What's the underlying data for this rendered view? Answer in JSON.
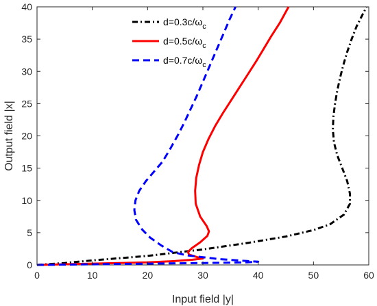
{
  "chart_data": {
    "type": "line",
    "xlabel": "Input field |y|",
    "ylabel": "Output field |x|",
    "xlim": [
      0,
      60
    ],
    "ylim": [
      0,
      40
    ],
    "xticks": [
      0,
      10,
      20,
      30,
      40,
      50,
      60
    ],
    "yticks": [
      0,
      5,
      10,
      15,
      20,
      25,
      30,
      35,
      40
    ],
    "grid": false,
    "legend_position": "top-center",
    "series": [
      {
        "name": "d=0.3c/ω",
        "name_sub": "c",
        "color": "#000000",
        "style": "dash-dot",
        "points": [
          [
            0,
            0
          ],
          [
            5,
            0.3
          ],
          [
            10,
            0.7
          ],
          [
            20,
            1.4
          ],
          [
            30,
            2.4
          ],
          [
            38,
            3.4
          ],
          [
            45,
            4.4
          ],
          [
            50,
            5.4
          ],
          [
            53,
            6.3
          ],
          [
            55.5,
            7.8
          ],
          [
            56.6,
            9.5
          ],
          [
            56.6,
            11
          ],
          [
            56.1,
            13
          ],
          [
            55.2,
            15
          ],
          [
            54.3,
            17
          ],
          [
            53.7,
            19
          ],
          [
            53.5,
            21
          ],
          [
            53.6,
            23
          ],
          [
            53.9,
            25
          ],
          [
            54.3,
            27
          ],
          [
            54.8,
            29
          ],
          [
            55.4,
            31
          ],
          [
            56.1,
            33
          ],
          [
            56.9,
            35
          ],
          [
            57.8,
            37
          ],
          [
            59.0,
            39
          ],
          [
            59.6,
            40
          ]
        ]
      },
      {
        "name": "d=0.5c/ω",
        "name_sub": "c",
        "color": "#ff0000",
        "style": "solid",
        "points": [
          [
            0,
            0
          ],
          [
            10,
            0.2
          ],
          [
            20,
            0.4
          ],
          [
            25,
            0.6
          ],
          [
            28,
            0.8
          ],
          [
            30,
            1.0
          ],
          [
            29,
            1.2
          ],
          [
            27.5,
            1.6
          ],
          [
            27.3,
            2.0
          ],
          [
            28,
            2.6
          ],
          [
            29.5,
            3.5
          ],
          [
            30.8,
            4.5
          ],
          [
            31.1,
            5.2
          ],
          [
            30.7,
            6.0
          ],
          [
            29.5,
            7.5
          ],
          [
            28.7,
            9.5
          ],
          [
            28.6,
            11.5
          ],
          [
            28.8,
            13.5
          ],
          [
            29.3,
            15.5
          ],
          [
            30.0,
            17.5
          ],
          [
            31.0,
            19.5
          ],
          [
            32.2,
            21.5
          ],
          [
            33.6,
            23.5
          ],
          [
            35.1,
            25.5
          ],
          [
            36.6,
            27.5
          ],
          [
            38.1,
            29.5
          ],
          [
            39.6,
            31.5
          ],
          [
            41.0,
            33.5
          ],
          [
            42.4,
            35.5
          ],
          [
            43.9,
            37.5
          ],
          [
            45.5,
            40
          ]
        ]
      },
      {
        "name": "d=0.7c/ω",
        "name_sub": "c",
        "color": "#0000ff",
        "style": "dashed",
        "points": [
          [
            0,
            0
          ],
          [
            10,
            0.1
          ],
          [
            20,
            0.2
          ],
          [
            30,
            0.3
          ],
          [
            38,
            0.4
          ],
          [
            40,
            0.5
          ],
          [
            38,
            0.6
          ],
          [
            33,
            0.9
          ],
          [
            30,
            1.2
          ],
          [
            27,
            1.5
          ],
          [
            24.5,
            2.0
          ],
          [
            22.5,
            3.0
          ],
          [
            20.5,
            4.2
          ],
          [
            19,
            5.5
          ],
          [
            17.9,
            7.0
          ],
          [
            17.6,
            8.5
          ],
          [
            17.8,
            10
          ],
          [
            18.5,
            11.5
          ],
          [
            19.7,
            13
          ],
          [
            21.2,
            14.5
          ],
          [
            22.7,
            16
          ],
          [
            24.1,
            18
          ],
          [
            25.4,
            20
          ],
          [
            26.6,
            22
          ],
          [
            27.7,
            24
          ],
          [
            28.8,
            26
          ],
          [
            29.8,
            28
          ],
          [
            30.8,
            30
          ],
          [
            31.8,
            32
          ],
          [
            32.8,
            34
          ],
          [
            33.8,
            36
          ],
          [
            34.8,
            38
          ],
          [
            35.9,
            40
          ]
        ]
      }
    ]
  }
}
